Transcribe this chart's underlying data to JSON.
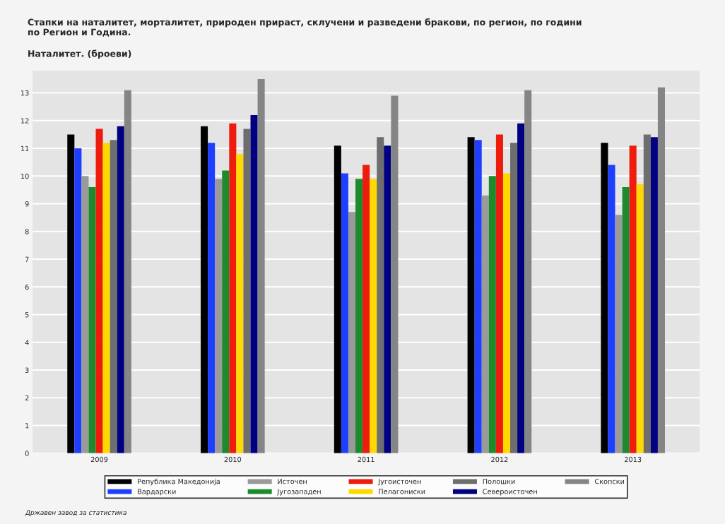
{
  "chart_data": {
    "type": "bar",
    "title": "Стапки на наталитет, морталитет, природен прираст, склучени и разведени бракови, по регион, по години\nпо Регион и Година.",
    "subtitle": "Наталитет. (броеви)",
    "categories": [
      "2009",
      "2010",
      "2011",
      "2012",
      "2013"
    ],
    "series": [
      {
        "name": "Република Македонија",
        "color": "#000000",
        "values": [
          11.5,
          11.8,
          11.1,
          11.4,
          11.2
        ]
      },
      {
        "name": "Вардарски",
        "color": "#1f3fff",
        "values": [
          11.0,
          11.2,
          10.1,
          11.3,
          10.4
        ]
      },
      {
        "name": "Источен",
        "color": "#9a9a9a",
        "values": [
          10.0,
          9.9,
          8.7,
          9.3,
          8.6
        ]
      },
      {
        "name": "Југозападен",
        "color": "#1e8a2e",
        "values": [
          9.6,
          10.2,
          9.9,
          10.0,
          9.6
        ]
      },
      {
        "name": "Југоисточен",
        "color": "#ee1c0c",
        "values": [
          11.7,
          11.9,
          10.4,
          11.5,
          11.1
        ]
      },
      {
        "name": "Пелагониски",
        "color": "#ffd800",
        "values": [
          11.2,
          10.8,
          9.9,
          10.1,
          9.7
        ]
      },
      {
        "name": "Полошки",
        "color": "#6e6e6e",
        "values": [
          11.3,
          11.7,
          11.4,
          11.2,
          11.5
        ]
      },
      {
        "name": "Североисточен",
        "color": "#000080",
        "values": [
          11.8,
          12.2,
          11.1,
          11.9,
          11.4
        ]
      },
      {
        "name": "Скопски",
        "color": "#858585",
        "values": [
          13.1,
          13.5,
          12.9,
          13.1,
          13.2
        ]
      }
    ],
    "ylim": [
      0,
      13.8
    ],
    "yticks": [
      0,
      1,
      2,
      3,
      4,
      5,
      6,
      7,
      8,
      9,
      10,
      11,
      12,
      13
    ],
    "grid": "y",
    "legend": "bottom",
    "annotations": [
      "Државен завод за статистика"
    ]
  }
}
